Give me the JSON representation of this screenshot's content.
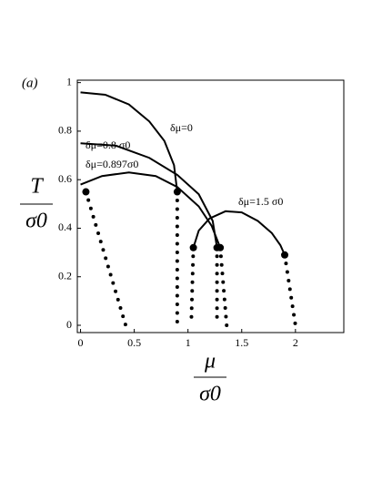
{
  "chart_data": {
    "type": "line",
    "panel_label": "(a)",
    "x_label": {
      "numerator": "μ",
      "denominator": "σ0"
    },
    "y_label": {
      "numerator": "T",
      "denominator": "σ0"
    },
    "xlim": [
      -0.03,
      2.45
    ],
    "ylim": [
      -0.03,
      1.01
    ],
    "xticks": [
      0,
      0.5,
      1,
      1.5,
      2
    ],
    "yticks": [
      0,
      0.2,
      0.4,
      0.6,
      0.8,
      1
    ],
    "color": "#000000",
    "series": [
      {
        "name": "δμ=0",
        "x": [
          0,
          0.23,
          0.45,
          0.64,
          0.78,
          0.87,
          0.9
        ],
        "values": [
          0.96,
          0.95,
          0.91,
          0.84,
          0.76,
          0.66,
          0.55
        ]
      },
      {
        "name": "δμ=0.8 σ0",
        "x": [
          0,
          0.33,
          0.64,
          0.9,
          1.1,
          1.23,
          1.27
        ],
        "values": [
          0.75,
          0.74,
          0.69,
          0.62,
          0.54,
          0.43,
          0.32
        ]
      },
      {
        "name": "δμ=0.897σ0",
        "x": [
          0,
          0.2,
          0.45,
          0.7,
          0.9,
          1.1,
          1.22,
          1.3
        ],
        "values": [
          0.58,
          0.615,
          0.63,
          0.615,
          0.57,
          0.49,
          0.41,
          0.32
        ]
      },
      {
        "name": "δμ=1.5 σ0",
        "x": [
          1.05,
          1.1,
          1.2,
          1.35,
          1.5,
          1.65,
          1.78,
          1.86,
          1.9
        ],
        "values": [
          0.32,
          0.39,
          0.44,
          0.47,
          0.465,
          0.43,
          0.38,
          0.33,
          0.29
        ]
      }
    ],
    "dotted_series": [
      {
        "x": [
          0.05,
          0.42
        ],
        "values": [
          0.55,
          0
        ]
      },
      {
        "x": [
          0.9,
          0.9
        ],
        "values": [
          0.55,
          0
        ]
      },
      {
        "x": [
          1.05,
          1.03
        ],
        "values": [
          0.32,
          0
        ]
      },
      {
        "x": [
          1.27,
          1.27
        ],
        "values": [
          0.32,
          0
        ]
      },
      {
        "x": [
          1.3,
          1.36
        ],
        "values": [
          0.32,
          0
        ]
      },
      {
        "x": [
          1.9,
          2.0
        ],
        "values": [
          0.29,
          0
        ]
      }
    ],
    "markers": {
      "x": [
        0.05,
        0.9,
        1.05,
        1.27,
        1.3,
        1.9
      ],
      "values": [
        0.55,
        0.55,
        0.32,
        0.32,
        0.32,
        0.29
      ]
    }
  }
}
